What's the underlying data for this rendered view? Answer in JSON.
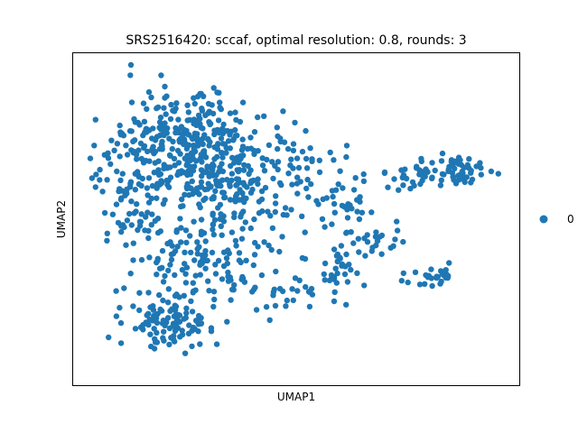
{
  "chart_data": {
    "type": "scatter",
    "title": "SRS2516420: sccaf, optimal resolution: 0.8, rounds: 3",
    "xlabel": "UMAP1",
    "ylabel": "UMAP2",
    "xticks": "none",
    "yticks": "none",
    "grid": false,
    "legend": {
      "placement": "right",
      "entries": [
        "0"
      ]
    },
    "marker_color": "#1f77b4",
    "series": [
      {
        "name": "0",
        "approx_point_count": 1000
      }
    ]
  }
}
